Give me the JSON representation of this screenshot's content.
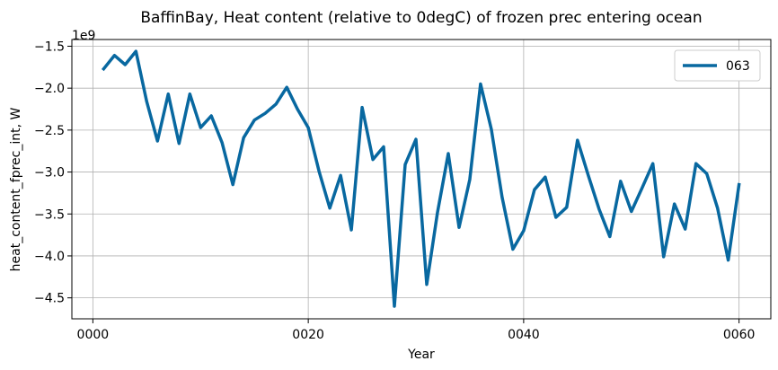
{
  "chart_data": {
    "type": "line",
    "title": "BaffinBay, Heat content (relative to 0degC) of frozen prec entering ocean",
    "xlabel": "Year",
    "ylabel": "heat_content_fprec_int, W",
    "y_offset_label": "1e9",
    "xlim": [
      -1.95,
      62.95
    ],
    "ylim": [
      -4.75,
      -1.42
    ],
    "x_ticks": [
      0,
      20,
      40,
      60
    ],
    "x_tick_labels": [
      "0000",
      "0020",
      "0040",
      "0060"
    ],
    "y_ticks": [
      -4.5,
      -4.0,
      -3.5,
      -3.0,
      -2.5,
      -2.0,
      -1.5
    ],
    "y_tick_labels": [
      "−4.5",
      "−4.0",
      "−3.5",
      "−3.0",
      "−2.5",
      "−2.0",
      "−1.5"
    ],
    "grid": true,
    "legend_position": "top-right",
    "series": [
      {
        "name": "063",
        "color": "#0868a0",
        "x": [
          1,
          2,
          3,
          4,
          5,
          6,
          7,
          8,
          9,
          10,
          11,
          12,
          13,
          14,
          15,
          16,
          17,
          18,
          19,
          20,
          21,
          22,
          23,
          24,
          25,
          26,
          27,
          28,
          29,
          30,
          31,
          32,
          33,
          34,
          35,
          36,
          37,
          38,
          39,
          40,
          41,
          42,
          43,
          44,
          45,
          46,
          47,
          48,
          49,
          50,
          51,
          52,
          53,
          54,
          55,
          56,
          57,
          58,
          59,
          60
        ],
        "values": [
          -1.77,
          -1.61,
          -1.72,
          -1.56,
          -2.16,
          -2.63,
          -2.07,
          -2.66,
          -2.07,
          -2.47,
          -2.33,
          -2.65,
          -3.15,
          -2.59,
          -2.38,
          -2.3,
          -2.19,
          -1.99,
          -2.25,
          -2.47,
          -2.99,
          -3.43,
          -3.04,
          -3.69,
          -2.23,
          -2.85,
          -2.7,
          -4.6,
          -2.91,
          -2.61,
          -4.34,
          -3.48,
          -2.78,
          -3.66,
          -3.09,
          -1.95,
          -2.49,
          -3.3,
          -3.92,
          -3.7,
          -3.21,
          -3.06,
          -3.54,
          -3.42,
          -2.62,
          -3.04,
          -3.44,
          -3.77,
          -3.11,
          -3.47,
          -3.19,
          -2.9,
          -4.01,
          -3.38,
          -3.68,
          -2.9,
          -3.02,
          -3.43,
          -4.05,
          -3.15
        ]
      }
    ]
  }
}
